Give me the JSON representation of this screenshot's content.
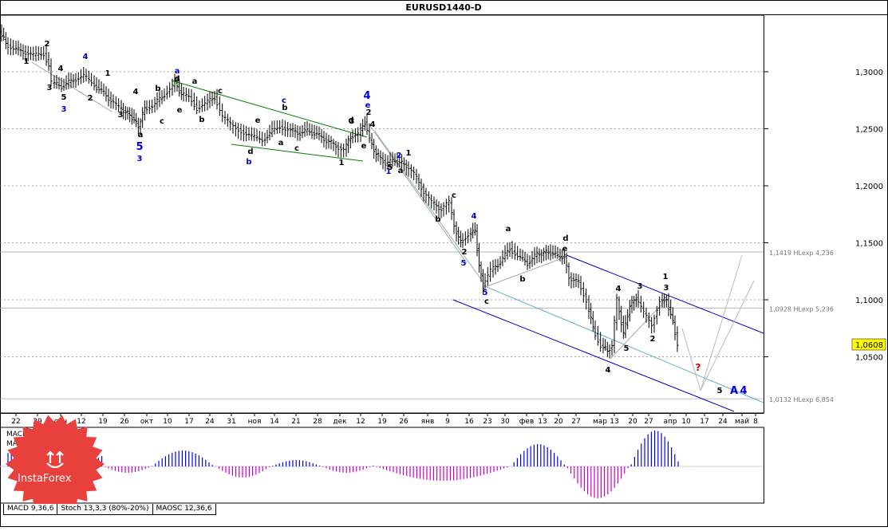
{
  "chart_data": {
    "type": "candlestick-wave-analysis",
    "title": "EURUSD1440-D",
    "instrument": "EURUSD",
    "timeframe": "D (1440)",
    "y_ticks": [
      "1,3000",
      "1,2500",
      "1,2000",
      "1,1500",
      "1,1000",
      "1,0500"
    ],
    "y_range": [
      1.0,
      1.34
    ],
    "last_price": "1,0608",
    "x_ticks": [
      "22",
      "29",
      "сен",
      "12",
      "19",
      "26",
      "окт",
      "10",
      "17",
      "24",
      "31",
      "ноя",
      "14",
      "21",
      "28",
      "дек",
      "12",
      "19",
      "26",
      "янв",
      "9",
      "16",
      "23",
      "30",
      "фев",
      "13",
      "20",
      "27",
      "мар",
      "13",
      "20",
      "27",
      "апр",
      "10",
      "17",
      "24",
      "май",
      "8"
    ],
    "levels": [
      {
        "label": "1,1419 HLexp 4,236",
        "value": 1.1419
      },
      {
        "label": "1,0928 HLexp 5,236",
        "value": 1.0928
      },
      {
        "label": "1,0132 HLexp 6,854",
        "value": 1.0132
      }
    ],
    "wave_labels_black": [
      "2",
      "1",
      "3",
      "4",
      "5",
      "1",
      "2",
      "3",
      "4",
      "a",
      "b",
      "c",
      "d",
      "e",
      "a",
      "b",
      "c",
      "d",
      "e",
      "a",
      "b",
      "c",
      "d",
      "e",
      "1",
      "2",
      "3",
      "4",
      "5",
      "1",
      "a",
      "b",
      "c",
      "2",
      "a",
      "b",
      "c",
      "d",
      "e",
      "4",
      "3",
      "5"
    ],
    "wave_labels_blue": [
      "4",
      "3",
      "5",
      "3",
      "a",
      "c",
      "b",
      "4",
      "e",
      "1",
      "2",
      "4",
      "5",
      "5",
      "A"
    ],
    "question_mark": "?",
    "macd_label": "MACD 9,36,6",
    "macd_value_label": "MACD =0,00",
    "tabs": [
      "MACD 9,36,6",
      "Stoch 13,3,3 (80%-20%)",
      "MAOSC 12,36,6"
    ],
    "logo_text": "InstaForex",
    "colors": {
      "background": "#ffffff",
      "price": "#000000",
      "blue": "#0000cc",
      "green": "#008000",
      "macd_pos": "#0000ff",
      "macd_neg": "#cc00cc",
      "logo": "#e8413d",
      "last_price_bg": "#ffff00"
    }
  }
}
